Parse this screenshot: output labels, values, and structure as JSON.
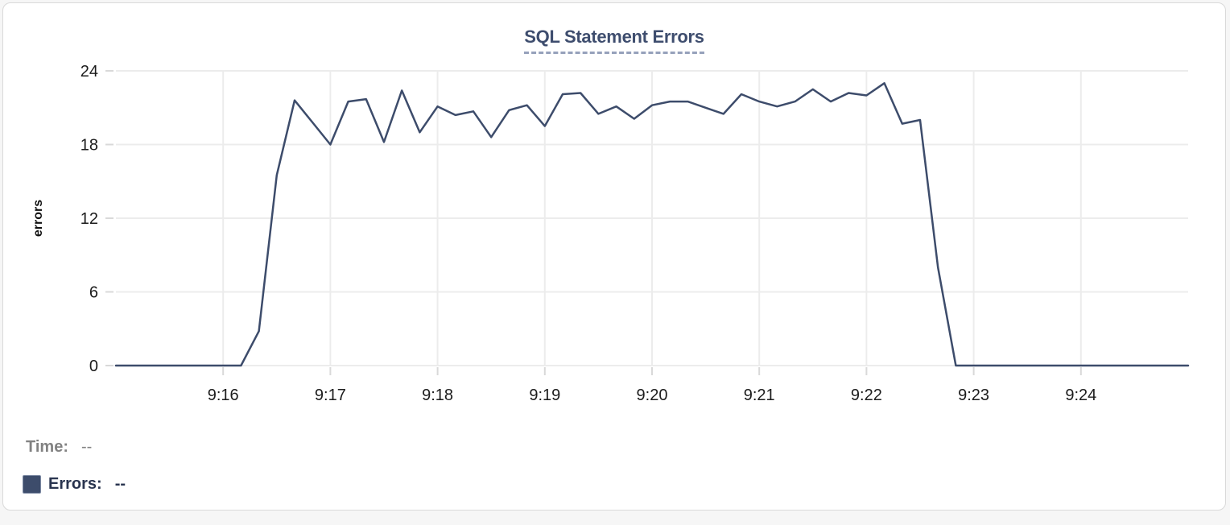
{
  "chart_data": {
    "type": "line",
    "title": "SQL Statement Errors",
    "xlabel": "",
    "ylabel": "errors",
    "ylim": [
      0,
      24
    ],
    "y_ticks": [
      0,
      6,
      12,
      18,
      24
    ],
    "x_tick_labels": [
      "9:16",
      "9:17",
      "9:18",
      "9:19",
      "9:20",
      "9:21",
      "9:22",
      "9:23",
      "9:24"
    ],
    "x_range_start": "9:15:00",
    "x_range_end": "9:25:00",
    "sample_interval_seconds": 10,
    "grid": true,
    "legend_position": "bottom-left",
    "series": [
      {
        "name": "Errors",
        "color": "#3d4c6b",
        "start_time": "9:15:00",
        "values": [
          0,
          0,
          0,
          0,
          0,
          0,
          0,
          0,
          2.8,
          15.5,
          21.6,
          19.8,
          18,
          21.5,
          21.7,
          18.2,
          22.4,
          19,
          21.1,
          20.4,
          20.7,
          18.6,
          20.8,
          21.2,
          19.5,
          22.1,
          22.2,
          20.5,
          21.1,
          20.1,
          21.2,
          21.5,
          21.5,
          21,
          20.5,
          22.1,
          21.5,
          21.1,
          21.5,
          22.5,
          21.5,
          22.2,
          22,
          23,
          19.7,
          20,
          8,
          0,
          0,
          0,
          0,
          0,
          0,
          0,
          0,
          0,
          0,
          0,
          0,
          0,
          0
        ]
      }
    ]
  },
  "tooltip_readout": {
    "time_label": "Time:",
    "time_value": "--",
    "errors_label": "Errors:",
    "errors_value": "--"
  },
  "colors": {
    "line": "#3d4c6b",
    "title_text": "#3e4d6e",
    "title_underline": "#96a1bb",
    "gridline": "#ececec",
    "tick": "#d9d9d9",
    "axis_text": "#1c1c1c",
    "time_row_text": "#828282",
    "errors_row_text": "#29344f",
    "card_border": "#d9d9d9"
  }
}
